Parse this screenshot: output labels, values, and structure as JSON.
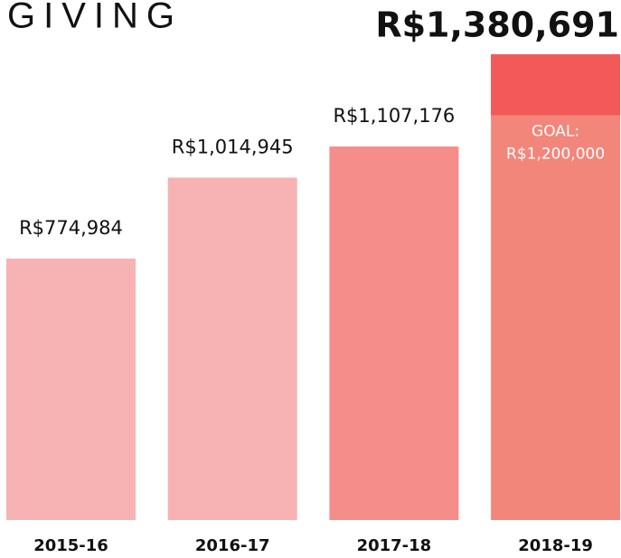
{
  "chart_data": {
    "type": "bar",
    "title": "GIVING",
    "categories": [
      "2015-16",
      "2016-17",
      "2017-18",
      "2018-19"
    ],
    "values": [
      774984,
      1014945,
      1107176,
      1380691
    ],
    "value_labels": [
      "R$774,984",
      "R$1,014,945",
      "R$1,107,176",
      "R$1,380,691"
    ],
    "colors": [
      "#f7b2b3",
      "#f7b2b3",
      "#f58d8a",
      "#f3867a"
    ],
    "goal": {
      "value": 1200000,
      "label": "GOAL:",
      "value_label": "R$1,200,000",
      "exceed_color": "#f25a5a"
    }
  }
}
